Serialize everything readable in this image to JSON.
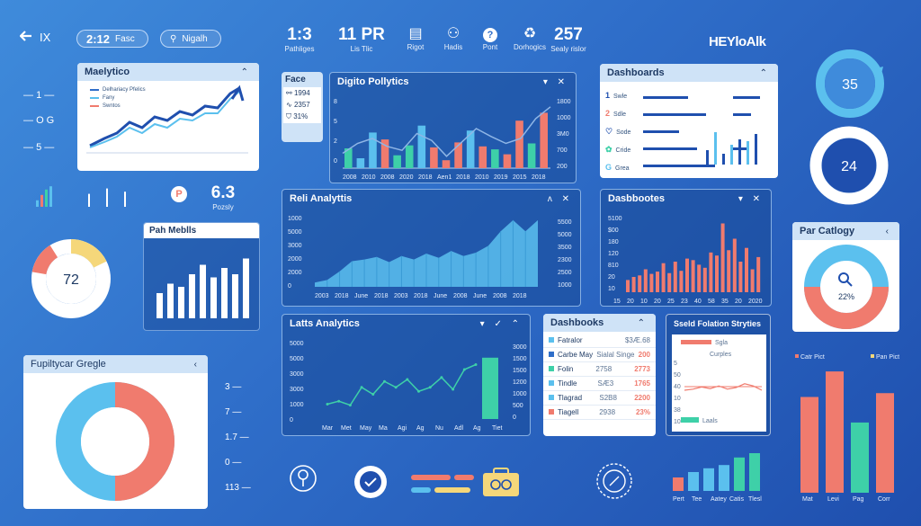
{
  "colors": {
    "accent": "#5bc0ee",
    "coral": "#f07b6e",
    "teal": "#3ed0a8",
    "navy": "#1f4fae",
    "yellow": "#f5d77a"
  },
  "top": {
    "back_icon": "back-arrow-icon",
    "back_label": "IX",
    "pill1_value": "2:12",
    "pill1_label": "Fasc",
    "pill2_icon": "person-icon",
    "pill2_label": "Nigalh",
    "stats": [
      {
        "value": "1:3",
        "label": "Pathliges"
      },
      {
        "value": "11 PR",
        "label": "Lis     Tlic"
      }
    ],
    "icon_stats": [
      {
        "icon": "clipboard-icon",
        "label": "Rigot"
      },
      {
        "icon": "people-icon",
        "label": "Hadis"
      },
      {
        "icon": "question-icon",
        "label": "Pont"
      },
      {
        "icon": "recycle-icon",
        "label": "Dorhogics"
      }
    ],
    "stat_right": {
      "value": "257",
      "label": "Sealy rislor"
    },
    "brand": "HEYloAlk"
  },
  "analytics_small": {
    "title": "Maelytico",
    "legend": [
      "Delhariacy Pfelics",
      "Fany",
      "Swntos"
    ]
  },
  "left_side": {
    "labels": [
      "1",
      "O  G",
      "5"
    ],
    "mini_stat_value": "6.3",
    "mini_stat_label": "Pozsly",
    "badge_icon": "p-badge-icon",
    "bars": [
      0.3,
      0.55,
      0.8,
      0.95,
      0.6,
      0.85,
      0.7
    ]
  },
  "donut72": {
    "value": "72"
  },
  "pah_metrics": {
    "title": "Pah Meblls",
    "values": [
      40,
      55,
      50,
      70,
      85,
      65,
      80,
      70,
      95
    ]
  },
  "face_panel": {
    "title": "Face",
    "rows": [
      {
        "icon": "handshake-icon",
        "value": "1994"
      },
      {
        "icon": "pulse-icon",
        "value": "2357"
      },
      {
        "icon": "shield-icon",
        "value": "31%"
      }
    ]
  },
  "digital": {
    "title": "Digito Pollytics",
    "y_labels": [
      "8",
      "5",
      "2",
      "0"
    ],
    "y_right": [
      "1800",
      "1000",
      "3M0",
      "700",
      "200"
    ],
    "x_labels": [
      "2008",
      "2010",
      "2008",
      "2020",
      "2018",
      "Aen1",
      "2018",
      "2010",
      "2019",
      "2015",
      "2018"
    ],
    "bars": [
      {
        "v": 2,
        "c": "teal"
      },
      {
        "v": 1,
        "c": "blue"
      },
      {
        "v": 3.6,
        "c": "blue"
      },
      {
        "v": 2.9,
        "c": "coral"
      },
      {
        "v": 1.3,
        "c": "teal"
      },
      {
        "v": 2.3,
        "c": "teal"
      },
      {
        "v": 4.3,
        "c": "blue"
      },
      {
        "v": 2.1,
        "c": "coral"
      },
      {
        "v": 0.8,
        "c": "coral"
      },
      {
        "v": 2.6,
        "c": "coral"
      },
      {
        "v": 3.8,
        "c": "blue"
      },
      {
        "v": 2.2,
        "c": "coral"
      },
      {
        "v": 1.9,
        "c": "teal"
      },
      {
        "v": 1.4,
        "c": "coral"
      },
      {
        "v": 4.8,
        "c": "coral"
      },
      {
        "v": 2.5,
        "c": "teal"
      },
      {
        "v": 5.6,
        "c": "coral"
      }
    ],
    "line": [
      1.5,
      2.5,
      3,
      2.2,
      1.8,
      3.5,
      2.8,
      1.2,
      2.6,
      4,
      3.2,
      2.5,
      3,
      5,
      6.2
    ]
  },
  "dashboards_top": {
    "title": "Dashboards",
    "rows": [
      {
        "n": "1",
        "t": "Swle"
      },
      {
        "n": "2",
        "t": "Sdle"
      },
      {
        "n": "",
        "t": "Sode"
      },
      {
        "n": "",
        "t": "Cride"
      },
      {
        "n": "",
        "t": "Grea"
      }
    ],
    "bars": [
      0.4,
      0.9,
      0.3,
      0.55,
      0.7,
      0.65,
      0.85
    ]
  },
  "ring35": {
    "value": "35"
  },
  "ring24": {
    "value": "24"
  },
  "reli": {
    "title": "Reli Analyttis",
    "y_labels": [
      "1000",
      "5000",
      "3000",
      "2000",
      "2000",
      "0"
    ],
    "y_right": [
      "5500",
      "5000",
      "3500",
      "2300",
      "2500",
      "1000"
    ],
    "x_labels": [
      "2003",
      "2018",
      "June",
      "2018",
      "2003",
      "2018",
      "June",
      "2008",
      "June",
      "2008",
      "2018"
    ],
    "values": [
      5,
      8,
      18,
      30,
      32,
      35,
      29,
      36,
      32,
      39,
      34,
      42,
      36,
      40,
      48,
      65,
      78,
      65,
      78
    ]
  },
  "dash_mid": {
    "title": "Dasbbootes",
    "y_labels": [
      "5100",
      "$00",
      "180",
      "120",
      "810",
      "20",
      "10"
    ],
    "x_labels": [
      "15",
      "20",
      "10",
      "20",
      "25",
      "23",
      "40",
      "58",
      "35",
      "20",
      "2020"
    ],
    "values": [
      16,
      20,
      22,
      30,
      24,
      27,
      38,
      25,
      40,
      28,
      44,
      42,
      36,
      32,
      52,
      48,
      90,
      55,
      70,
      40,
      58,
      30,
      46
    ]
  },
  "par_category": {
    "title": "Par Catlogy",
    "value": "22%",
    "icon": "magnifier-icon"
  },
  "latts": {
    "title": "Latts Analytics",
    "y_labels": [
      "5000",
      "5000",
      "3000",
      "3000",
      "1000",
      "0"
    ],
    "y_right": [
      "3000",
      "1500",
      "1500",
      "1200",
      "1000",
      "500",
      "0"
    ],
    "x_labels": [
      "Mar",
      "Met",
      "May",
      "Ma",
      "Agi",
      "Ag",
      "Nu",
      "Adl",
      "Ag",
      "Tiet"
    ],
    "line": [
      1.5,
      1.8,
      1.4,
      3.2,
      2.5,
      3.8,
      3.2,
      4,
      2.8,
      3.2,
      4.2,
      3,
      5,
      5.5
    ],
    "bar": 6.2
  },
  "dashbooks": {
    "title": "Dashbooks",
    "rows": [
      {
        "c": "#5bc0ee",
        "a": "Fatralor",
        "b": "$3Æ.68",
        "sub": ""
      },
      {
        "c": "#2f6ec9",
        "a": "Carbe\nMay",
        "b": "Sialal\nSinge",
        "v": "200"
      },
      {
        "c": "#3ed0a8",
        "a": "Folin",
        "b": "2758",
        "v": "2773"
      },
      {
        "c": "#5bc0ee",
        "a": "Tindle",
        "b": "SÆ3",
        "v": "1765"
      },
      {
        "c": "#5bc0ee",
        "a": "Tlagrad",
        "b": "S2B8",
        "v": "2200"
      },
      {
        "c": "#f07b6e",
        "a": "Tiagell",
        "b": "2938",
        "v": "23%"
      }
    ]
  },
  "sseld": {
    "title": "Sseld Folation Stryties",
    "legend1": "Sgla",
    "label": "Curples",
    "legend2": "Laals",
    "y_labels": [
      "5",
      "50",
      "40",
      "10",
      "38",
      "10"
    ],
    "line": [
      3,
      3.2,
      3.6,
      3.3,
      3.8,
      3.2,
      3.5,
      4.2,
      3.8,
      3.0
    ]
  },
  "bottom_left": {
    "title": "Fupiltycar Gregle",
    "scale": [
      "3",
      "7",
      "1.7",
      "0",
      "113"
    ]
  },
  "bottom_icons": [
    "head-gear-icon",
    "check-icon",
    "toggle-lines-icon",
    "briefcase-icon",
    "emblem-icon"
  ],
  "bottom_bars": {
    "x_labels": [
      "Pert",
      "Tee",
      "Aatey",
      "Catis",
      "Tlesl"
    ],
    "values": [
      0.25,
      0.35,
      0.42,
      0.48,
      0.62,
      0.7
    ]
  },
  "bottom_right_chart": {
    "legend": [
      "Catr Pict",
      "Pan Pict"
    ],
    "x_labels": [
      "Mat",
      "Levi",
      "Pag",
      "Corr"
    ],
    "values": [
      {
        "v": 0.75,
        "c": "coral"
      },
      {
        "v": 0.95,
        "c": "coral"
      },
      {
        "v": 0.55,
        "c": "teal"
      },
      {
        "v": 0.78,
        "c": "coral"
      }
    ]
  }
}
